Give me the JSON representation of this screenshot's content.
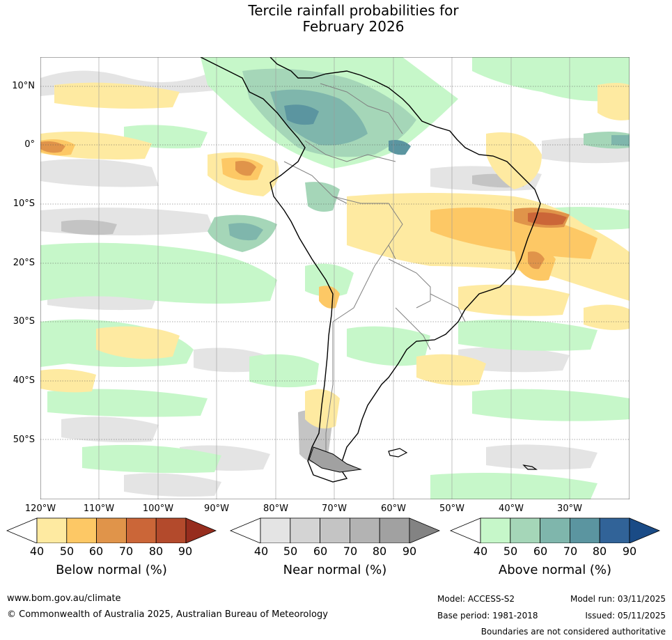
{
  "title_line1": "Tercile rainfall probabilities for",
  "title_line2": "February 2026",
  "map": {
    "lat_labels": [
      "10°N",
      "0°",
      "10°S",
      "20°S",
      "30°S",
      "40°S",
      "50°S"
    ],
    "lon_labels": [
      "120°W",
      "110°W",
      "100°W",
      "90°W",
      "80°W",
      "70°W",
      "60°W",
      "50°W",
      "40°W",
      "30°W"
    ],
    "colors": {
      "ocean": "#ffffff",
      "land": "#ffffff",
      "coast": "#000000",
      "border": "#808080",
      "grid": "#555555"
    }
  },
  "legends": [
    {
      "title": "Below normal (%)",
      "ticks": [
        "40",
        "50",
        "60",
        "70",
        "80",
        "90"
      ],
      "colors": [
        "#ffffff",
        "#feeaa1",
        "#fdc865",
        "#e0944a",
        "#cb6638",
        "#b34a2c",
        "#962d1e"
      ]
    },
    {
      "title": "Near normal (%)",
      "ticks": [
        "40",
        "50",
        "60",
        "70",
        "80",
        "90"
      ],
      "colors": [
        "#ffffff",
        "#e4e4e4",
        "#d4d4d4",
        "#c4c4c4",
        "#b3b3b3",
        "#a1a1a1",
        "#838383"
      ]
    },
    {
      "title": "Above normal (%)",
      "ticks": [
        "40",
        "50",
        "60",
        "70",
        "80",
        "90"
      ],
      "colors": [
        "#ffffff",
        "#c6f7c9",
        "#a5d6b8",
        "#7fb6ac",
        "#5b95a0",
        "#316398",
        "#1a4b86"
      ]
    }
  ],
  "footer": {
    "url": "www.bom.gov.au/climate",
    "copyright": "© Commonwealth of Australia 2025, Australian Bureau of Meteorology",
    "model": "Model: ACCESS-S2",
    "base_period": "Base period: 1981-2018",
    "model_run": "Model run: 03/11/2025",
    "issued": "Issued: 05/11/2025",
    "disclaimer": "Boundaries are not considered authoritative"
  }
}
